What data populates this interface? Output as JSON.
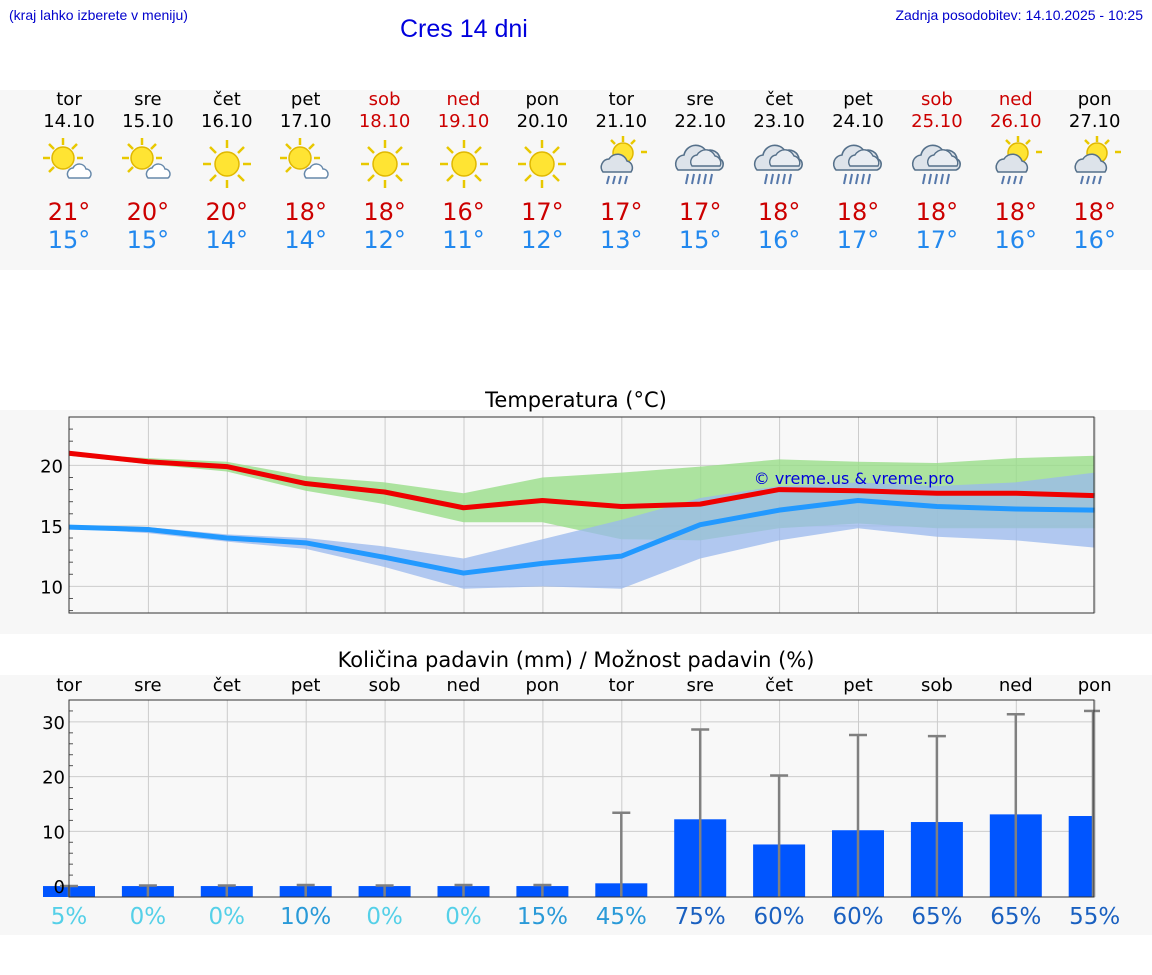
{
  "header": {
    "location_hint": "(kraj lahko izberete v meniju)",
    "title": "Cres 14 dni",
    "last_update": "Zadnja posodobitev: 14.10.2025 - 10:25"
  },
  "days": [
    {
      "name": "tor",
      "date": "14.10",
      "weekend": false,
      "icon": "sun-cloud-icon",
      "tmax": "21°",
      "tmin": "15°"
    },
    {
      "name": "sre",
      "date": "15.10",
      "weekend": false,
      "icon": "sun-cloud-icon",
      "tmax": "20°",
      "tmin": "15°"
    },
    {
      "name": "čet",
      "date": "16.10",
      "weekend": false,
      "icon": "sun-icon",
      "tmax": "20°",
      "tmin": "14°"
    },
    {
      "name": "pet",
      "date": "17.10",
      "weekend": false,
      "icon": "sun-cloud-icon",
      "tmax": "18°",
      "tmin": "14°"
    },
    {
      "name": "sob",
      "date": "18.10",
      "weekend": true,
      "icon": "sun-icon",
      "tmax": "18°",
      "tmin": "12°"
    },
    {
      "name": "ned",
      "date": "19.10",
      "weekend": true,
      "icon": "sun-icon",
      "tmax": "16°",
      "tmin": "11°"
    },
    {
      "name": "pon",
      "date": "20.10",
      "weekend": false,
      "icon": "sun-icon",
      "tmax": "17°",
      "tmin": "12°"
    },
    {
      "name": "tor",
      "date": "21.10",
      "weekend": false,
      "icon": "sun-rain-icon",
      "tmax": "17°",
      "tmin": "13°"
    },
    {
      "name": "sre",
      "date": "22.10",
      "weekend": false,
      "icon": "rain-cloud-icon",
      "tmax": "17°",
      "tmin": "15°"
    },
    {
      "name": "čet",
      "date": "23.10",
      "weekend": false,
      "icon": "rain-cloud-icon",
      "tmax": "18°",
      "tmin": "16°"
    },
    {
      "name": "pet",
      "date": "24.10",
      "weekend": false,
      "icon": "rain-cloud-icon",
      "tmax": "18°",
      "tmin": "17°"
    },
    {
      "name": "sob",
      "date": "25.10",
      "weekend": true,
      "icon": "rain-cloud-icon",
      "tmax": "18°",
      "tmin": "17°"
    },
    {
      "name": "ned",
      "date": "26.10",
      "weekend": true,
      "icon": "sun-rain-icon",
      "tmax": "18°",
      "tmin": "16°"
    },
    {
      "name": "pon",
      "date": "27.10",
      "weekend": false,
      "icon": "sun-rain-icon",
      "tmax": "18°",
      "tmin": "16°"
    }
  ],
  "colors": {
    "max_line": "#ee0000",
    "min_line": "#2299ff",
    "max_band": "#99dd88",
    "min_band": "#99b8ee",
    "bar": "#0055ff",
    "whisker": "#808080",
    "watermark": "#0000dd"
  },
  "chart_data": [
    {
      "type": "line",
      "title": "Temperatura (°C)",
      "watermark": "© vreme.us & vreme.pro",
      "x": [
        "14.10",
        "15.10",
        "16.10",
        "17.10",
        "18.10",
        "19.10",
        "20.10",
        "21.10",
        "22.10",
        "23.10",
        "24.10",
        "25.10",
        "26.10",
        "27.10"
      ],
      "ylim": [
        7.8,
        24
      ],
      "yticks": [
        10,
        15,
        20
      ],
      "series": [
        {
          "name": "max",
          "values": [
            21.0,
            20.3,
            19.9,
            18.5,
            17.8,
            16.5,
            17.1,
            16.6,
            16.8,
            18.0,
            17.9,
            17.7,
            17.7,
            17.5
          ],
          "band_low": [
            20.8,
            20.1,
            19.5,
            17.9,
            16.8,
            15.3,
            15.3,
            13.9,
            13.8,
            14.8,
            15.2,
            14.8,
            14.8,
            14.8
          ],
          "band_high": [
            21.0,
            20.6,
            20.3,
            19.1,
            18.6,
            17.7,
            19.0,
            19.4,
            19.9,
            20.5,
            20.3,
            20.2,
            20.6,
            20.8
          ]
        },
        {
          "name": "min",
          "values": [
            14.9,
            14.7,
            14.0,
            13.6,
            12.4,
            11.1,
            11.9,
            12.5,
            15.1,
            16.3,
            17.1,
            16.6,
            16.4,
            16.3
          ],
          "band_low": [
            14.8,
            14.4,
            13.7,
            13.1,
            11.6,
            9.8,
            10.0,
            9.8,
            12.3,
            13.8,
            14.8,
            14.1,
            13.8,
            13.2
          ],
          "band_high": [
            15.0,
            14.9,
            14.3,
            14.0,
            13.3,
            12.3,
            13.9,
            15.5,
            17.3,
            18.3,
            18.6,
            18.3,
            18.6,
            19.4
          ]
        }
      ]
    },
    {
      "type": "bar",
      "title": "Količina padavin (mm) / Možnost padavin (%)",
      "categories": [
        "tor",
        "sre",
        "čet",
        "pet",
        "sob",
        "ned",
        "pon",
        "tor",
        "sre",
        "čet",
        "pet",
        "sob",
        "ned",
        "pon"
      ],
      "ylim": [
        -2,
        34
      ],
      "yticks": [
        0,
        10,
        20,
        30
      ],
      "values": [
        0,
        0,
        0,
        0,
        0,
        0,
        0,
        0.5,
        12.2,
        7.6,
        10.2,
        11.7,
        13.1,
        12.8
      ],
      "whisker_high": [
        0,
        0.1,
        0.1,
        0.2,
        0.1,
        0.2,
        0.2,
        13.4,
        28.6,
        20.2,
        27.6,
        27.4,
        31.4,
        32.0
      ],
      "probability": [
        "5%",
        "0%",
        "0%",
        "10%",
        "0%",
        "0%",
        "15%",
        "45%",
        "75%",
        "60%",
        "60%",
        "65%",
        "65%",
        "55%"
      ]
    }
  ]
}
